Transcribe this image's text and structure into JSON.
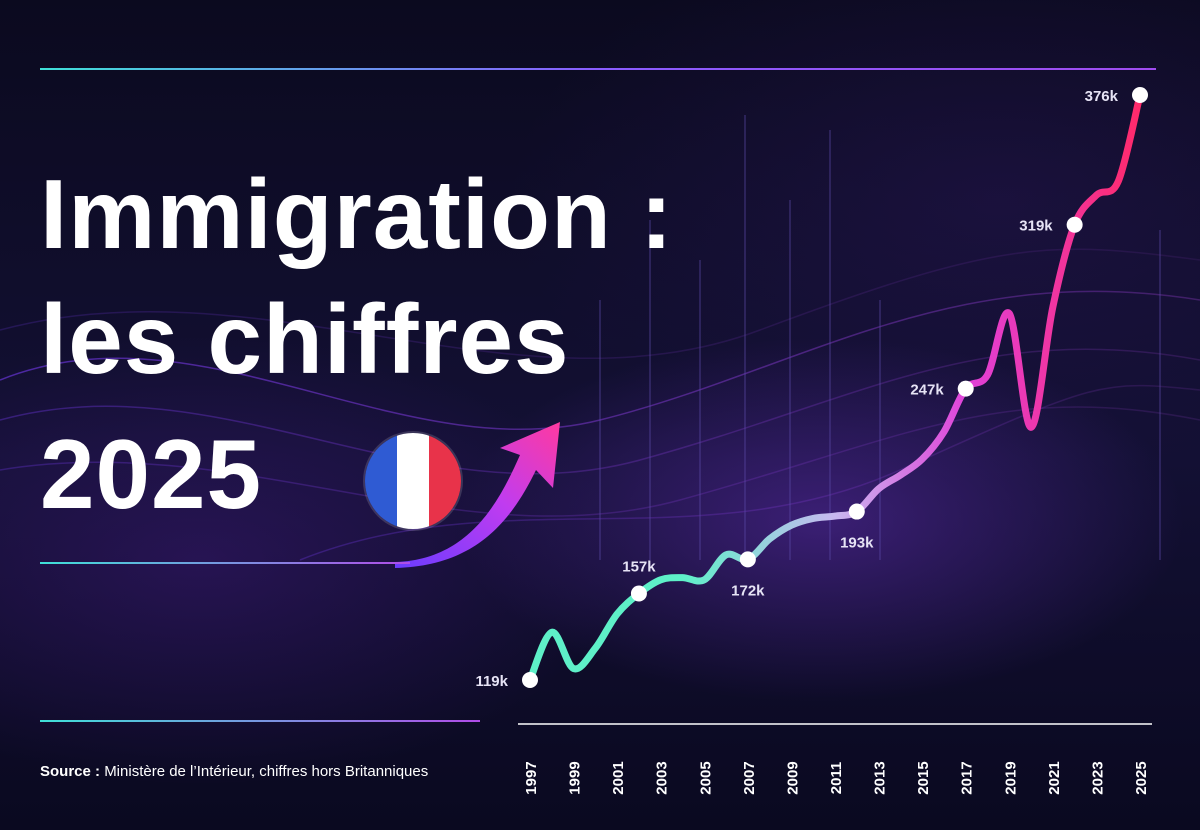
{
  "title": {
    "line1": "Immigration :",
    "line2": "les chiffres",
    "line3": "2025"
  },
  "flag": {
    "name": "france-flag",
    "colors": [
      "#2f5bd3",
      "#ffffff",
      "#e8334a"
    ]
  },
  "source": {
    "label": "Source :",
    "text": "Ministère de l’Intérieur, chiffres hors Britanniques"
  },
  "colors": {
    "background": "#0c0b22",
    "line_start": "#5ef0c8",
    "line_mid": "#c8b8f0",
    "line_magenta": "#e040d8",
    "line_end": "#ff2a6a"
  },
  "chart_data": {
    "type": "line",
    "title": "Immigration : les chiffres 2025",
    "xlabel": "",
    "ylabel": "",
    "x_ticks": [
      "1997",
      "1999",
      "2001",
      "2003",
      "2005",
      "2007",
      "2009",
      "2011",
      "2013",
      "2015",
      "2017",
      "2019",
      "2021",
      "2023",
      "2025"
    ],
    "xlim": [
      1997,
      2025
    ],
    "series": [
      {
        "x": [
          1997,
          1998,
          1999,
          2000,
          2001,
          2002,
          2003,
          2004,
          2005,
          2006,
          2007,
          2008,
          2009,
          2010,
          2011,
          2012,
          2013,
          2014,
          2015,
          2016,
          2017,
          2018,
          2019,
          2020,
          2021,
          2022,
          2023,
          2024,
          2025
        ],
        "values": [
          119,
          140,
          124,
          133,
          148,
          157,
          163,
          164,
          163,
          174,
          172,
          181,
          187,
          190,
          191,
          193,
          203,
          209,
          216,
          228,
          247,
          253,
          280,
          230,
          283,
          319,
          332,
          338,
          376
        ]
      }
    ],
    "annotations": [
      {
        "x": 1997,
        "label": "119k"
      },
      {
        "x": 2002,
        "label": "157k"
      },
      {
        "x": 2007,
        "label": "172k"
      },
      {
        "x": 2012,
        "label": "193k"
      },
      {
        "x": 2017,
        "label": "247k"
      },
      {
        "x": 2022,
        "label": "319k"
      },
      {
        "x": 2025,
        "label": "376k"
      }
    ],
    "legend": "none",
    "grid": false
  }
}
